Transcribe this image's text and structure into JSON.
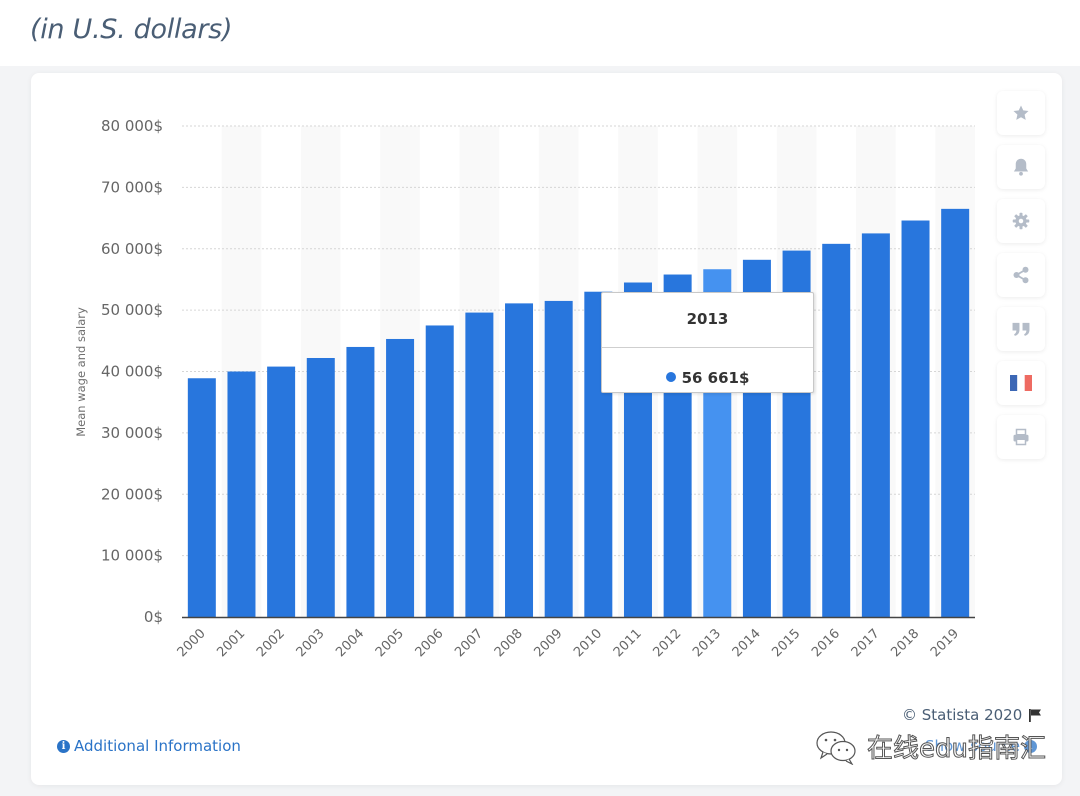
{
  "page": {
    "subtitle": "(in U.S. dollars)"
  },
  "chart_data": {
    "type": "bar",
    "title": "",
    "xlabel": "",
    "ylabel": "Mean wage and salary",
    "ylim": [
      0,
      80000
    ],
    "y_ticks": [
      0,
      10000,
      20000,
      30000,
      40000,
      50000,
      60000,
      70000,
      80000
    ],
    "y_tick_labels": [
      "0$",
      "10 000$",
      "20 000$",
      "30 000$",
      "40 000$",
      "50 000$",
      "60 000$",
      "70 000$",
      "80 000$"
    ],
    "grid": true,
    "categories": [
      "2000",
      "2001",
      "2002",
      "2003",
      "2004",
      "2005",
      "2006",
      "2007",
      "2008",
      "2009",
      "2010",
      "2011",
      "2012",
      "2013",
      "2014",
      "2015",
      "2016",
      "2017",
      "2018",
      "2019"
    ],
    "values": [
      38900,
      40000,
      40800,
      42200,
      44000,
      45300,
      47500,
      49600,
      51100,
      51500,
      53000,
      54500,
      55800,
      56661,
      58200,
      59700,
      60800,
      62500,
      64600,
      66500
    ],
    "series": [
      {
        "name": "Mean wage and salary",
        "color": "#2876dd",
        "highlight_color": "#4592f0",
        "values": [
          38900,
          40000,
          40800,
          42200,
          44000,
          45300,
          47500,
          49600,
          51100,
          51500,
          53000,
          54500,
          55800,
          56661,
          58200,
          59700,
          60800,
          62500,
          64600,
          66500
        ]
      }
    ],
    "highlighted_index": 13,
    "tooltip": {
      "title": "2013",
      "value_label": "56 661$"
    },
    "legend": "none"
  },
  "toolbar": {
    "items": [
      {
        "name": "favorite",
        "icon": "star-icon"
      },
      {
        "name": "notify",
        "icon": "bell-icon"
      },
      {
        "name": "settings",
        "icon": "gear-icon"
      },
      {
        "name": "share",
        "icon": "share-icon"
      },
      {
        "name": "cite",
        "icon": "quote-icon"
      },
      {
        "name": "language",
        "icon": "french-flag-icon"
      },
      {
        "name": "print",
        "icon": "print-icon"
      }
    ]
  },
  "footer": {
    "additional_info": "Additional Information",
    "copyright": "© Statista 2020",
    "show_source": "Show source",
    "watermark": "在线edu指南汇"
  },
  "colors": {
    "bar": "#2876dd",
    "bar_highlight": "#4592f0",
    "link": "#2a73c7",
    "subtitle": "#4a5e75",
    "icon": "#b4bcc8"
  }
}
